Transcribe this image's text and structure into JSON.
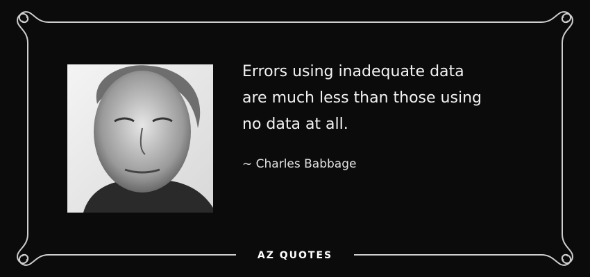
{
  "quote": {
    "lines": [
      "Errors using inadequate data",
      "are much less than those using",
      "no data at all."
    ],
    "author": "~ Charles Babbage"
  },
  "footer": {
    "logo": "AZ QUOTES"
  }
}
